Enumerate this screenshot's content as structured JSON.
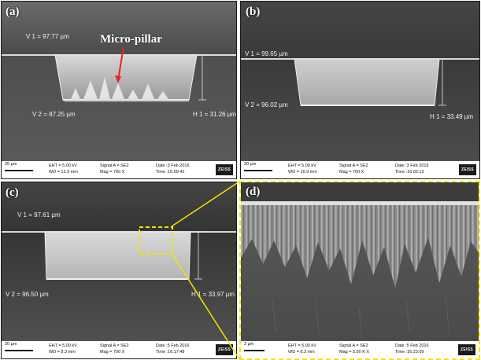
{
  "panels": {
    "a": {
      "label": "(a)",
      "callout": "Micro-pillar",
      "v1": "V 1 = 97.77 µm",
      "v2": "V 2 = 87.25 µm",
      "h1": "H 1 = 31.26 µm",
      "scale": "20 µm",
      "eht": "EHT = 5.00 kV",
      "wd": "WD = 12.3 mm",
      "signal": "Signal A = SE2",
      "mag": "Mag = 700 X",
      "date": "Date :3 Feb 2016",
      "time": "Time :16:09:42"
    },
    "b": {
      "label": "(b)",
      "v1": "V 1 = 99.65 µm",
      "v2": "V 2 = 96.02 µm",
      "h1": "H 1 = 33.49 µm",
      "scale": "20 µm",
      "eht": "EHT = 5.00 kV",
      "wd": "WD = 16.9 mm",
      "signal": "Signal A = SE2",
      "mag": "Mag = 700 X",
      "date": "Date :3 Feb 2016",
      "time": "Time :16:03:13"
    },
    "c": {
      "label": "(c)",
      "v1": "V 1 = 97.61 µm",
      "v2": "V 2 = 96.50 µm",
      "h1": "H 1 = 33.97 µm",
      "scale": "20 µm",
      "eht": "EHT = 5.00 kV",
      "wd": "WD = 8.3 mm",
      "signal": "Signal A = SE2",
      "mag": "Mag = 700 X",
      "date": "Date :5 Feb 2016",
      "time": "Time :16:17:48"
    },
    "d": {
      "label": "(d)",
      "scale": "2 µm",
      "eht": "EHT = 5.00 kV",
      "wd": "WD = 8.3 mm",
      "signal": "Signal A = SE2",
      "mag": "Mag = 5.00 K X",
      "date": "Date :5 Feb 2016",
      "time": "Time :16:23:09"
    }
  },
  "logo_text": "ZEISS",
  "colors": {
    "highlight": "#f2e600",
    "callout_arrow": "#e8231e",
    "sem_background": "#5e5e5e",
    "sem_trench": "#c8c8c8"
  }
}
